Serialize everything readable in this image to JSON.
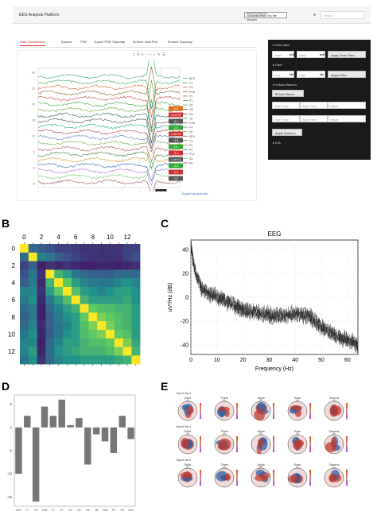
{
  "app": {
    "brand": "EEG Analysis Platform",
    "file_button": "Choose File",
    "file_status": "No file chosen",
    "search_placeholder": "Search",
    "tabs": [
      "Data Visualization",
      "Epochs",
      "PSD",
      "Epoch PSD Topomap",
      "Evoked Joint Plot",
      "Evoked Topomap"
    ],
    "active_tab": 0,
    "export_link": "Export as json/csv",
    "channels": [
      "AF3",
      "F7",
      "F3",
      "FC5",
      "T7",
      "P7",
      "O1",
      "O2",
      "P8",
      "T8",
      "FC6",
      "F4",
      "F8",
      "AF4",
      "Cz",
      "Pz",
      "Fz",
      "FCz",
      "A1",
      "A2"
    ],
    "channel_values": [
      "-0.8",
      "4.1e+01",
      "-5.1",
      "2.3",
      "-1.4e+01",
      "-0.9",
      "1.6",
      "-3.1",
      "1.2e+01",
      "-2.8",
      "4.4",
      "0.3"
    ],
    "x_ticks": [
      "0",
      "2",
      "4",
      "6",
      "8",
      "10",
      "12",
      "14"
    ],
    "y_ticks": [
      "30",
      "25",
      "20",
      "15",
      "10",
      "5",
      "0",
      "-5"
    ],
    "cursor_value": "13.269",
    "accent_color": "#e06c1c"
  },
  "side": {
    "slice_title": "Slice data",
    "start_placeholder": "Start",
    "stop_placeholder": "Stop",
    "unit_ms": "mS",
    "apply_slice": "Apply Time Slice",
    "filter_title": "Filter",
    "low_placeholder": "Low",
    "high_placeholder": "High",
    "unit_hz": "Hz",
    "apply_filter": "Apply Filter",
    "markers_title": "Virtual Markers",
    "add_marker": "Add Marker",
    "start_time": "Start Time",
    "stop_time": "Stop Time",
    "value": "Value",
    "apply_markers": "Apply Markers",
    "ica_title": "ICA"
  },
  "panelB": {
    "label": "B",
    "ticks": [
      "0",
      "2",
      "4",
      "6",
      "8",
      "10",
      "12"
    ],
    "matrix": [
      [
        1.0,
        0.35,
        0.3,
        0.25,
        0.2,
        0.2,
        0.18,
        0.15,
        0.15,
        0.15,
        0.15,
        0.15,
        0.2,
        0.2
      ],
      [
        0.35,
        1.0,
        0.45,
        0.4,
        0.3,
        0.25,
        0.2,
        0.18,
        0.15,
        0.15,
        0.15,
        0.15,
        0.2,
        0.25
      ],
      [
        0.2,
        0.3,
        0.1,
        0.15,
        0.12,
        0.15,
        0.12,
        0.1,
        0.1,
        0.12,
        0.12,
        0.1,
        0.12,
        0.15
      ],
      [
        0.25,
        0.4,
        0.15,
        1.0,
        0.65,
        0.55,
        0.4,
        0.35,
        0.3,
        0.3,
        0.3,
        0.35,
        0.35,
        0.35
      ],
      [
        0.3,
        0.4,
        0.12,
        0.65,
        1.0,
        0.75,
        0.55,
        0.45,
        0.4,
        0.4,
        0.4,
        0.45,
        0.5,
        0.45
      ],
      [
        0.45,
        0.45,
        0.15,
        0.55,
        0.75,
        1.0,
        0.7,
        0.55,
        0.5,
        0.45,
        0.5,
        0.55,
        0.55,
        0.5
      ],
      [
        0.4,
        0.5,
        0.12,
        0.4,
        0.55,
        0.7,
        1.0,
        0.65,
        0.55,
        0.55,
        0.55,
        0.55,
        0.6,
        0.5
      ],
      [
        0.35,
        0.4,
        0.1,
        0.35,
        0.45,
        0.55,
        0.65,
        1.0,
        0.75,
        0.7,
        0.7,
        0.65,
        0.65,
        0.55
      ],
      [
        0.3,
        0.4,
        0.1,
        0.3,
        0.4,
        0.5,
        0.55,
        0.75,
        1.0,
        0.8,
        0.75,
        0.7,
        0.65,
        0.55
      ],
      [
        0.35,
        0.45,
        0.12,
        0.3,
        0.4,
        0.45,
        0.55,
        0.7,
        0.8,
        1.0,
        0.8,
        0.7,
        0.65,
        0.55
      ],
      [
        0.4,
        0.5,
        0.12,
        0.3,
        0.4,
        0.5,
        0.55,
        0.7,
        0.75,
        0.8,
        1.0,
        0.75,
        0.7,
        0.55
      ],
      [
        0.45,
        0.45,
        0.1,
        0.35,
        0.45,
        0.55,
        0.55,
        0.65,
        0.7,
        0.7,
        0.75,
        1.0,
        0.8,
        0.6
      ],
      [
        0.45,
        0.55,
        0.12,
        0.35,
        0.5,
        0.55,
        0.6,
        0.65,
        0.65,
        0.65,
        0.7,
        0.8,
        1.0,
        0.65
      ],
      [
        0.4,
        0.5,
        0.15,
        0.35,
        0.45,
        0.5,
        0.5,
        0.55,
        0.55,
        0.55,
        0.55,
        0.6,
        0.65,
        1.0
      ]
    ]
  },
  "panelC": {
    "label": "C",
    "title": "EEG",
    "xlabel": "Frequency (Hz)",
    "ylabel": "uV²/Hz (dB)",
    "x_ticks": [
      "0",
      "10",
      "20",
      "30",
      "40",
      "50",
      "60"
    ],
    "y_ticks": [
      "40",
      "20",
      "0",
      "-20",
      "-40"
    ]
  },
  "panelD": {
    "label": "D",
    "y_ticks": [
      "5",
      "0",
      "-5",
      "-10",
      "-15"
    ],
    "x_labels": [
      "AF3",
      "F7",
      "F3",
      "FC5",
      "T7",
      "P7",
      "O1",
      "O2",
      "P8",
      "T8",
      "FC6",
      "F4",
      "F8",
      "AF4"
    ]
  },
  "panelE": {
    "label": "E",
    "epochs": [
      "Epoch No:0",
      "Epoch No:1",
      "Epoch No:2"
    ],
    "bands": [
      "Delta",
      "Theta",
      "Alpha",
      "Beta",
      "Gamma"
    ]
  },
  "chart_data": [
    {
      "type": "heatmap",
      "title": "",
      "ticks": [
        "0",
        "2",
        "4",
        "6",
        "8",
        "10",
        "12"
      ],
      "size": 14
    },
    {
      "type": "line",
      "title": "EEG",
      "xlabel": "Frequency (Hz)",
      "ylabel": "uV²/Hz (dB)",
      "xlim": [
        0,
        64
      ],
      "ylim": [
        -48,
        48
      ],
      "x": [
        0,
        2,
        4,
        6,
        8,
        10,
        15,
        20,
        25,
        30,
        35,
        40,
        45,
        50,
        55,
        60,
        64
      ],
      "y": [
        42,
        18,
        8,
        4,
        2,
        0,
        -5,
        -10,
        -13,
        -15,
        -16,
        -14,
        -15,
        -25,
        -32,
        -36,
        -40
      ]
    },
    {
      "type": "bar",
      "categories": [
        "AF3",
        "F7",
        "F3",
        "FC5",
        "T7",
        "P7",
        "O1",
        "O2",
        "P8",
        "T8",
        "FC6",
        "F4",
        "F8",
        "AF4"
      ],
      "values": [
        -10.0,
        2.5,
        -16.0,
        4.5,
        2.5,
        6.0,
        0.5,
        2.0,
        -8.0,
        -1.5,
        -3.0,
        -5.5,
        2.5,
        -2.5
      ],
      "ylim": [
        -17,
        7
      ]
    }
  ]
}
